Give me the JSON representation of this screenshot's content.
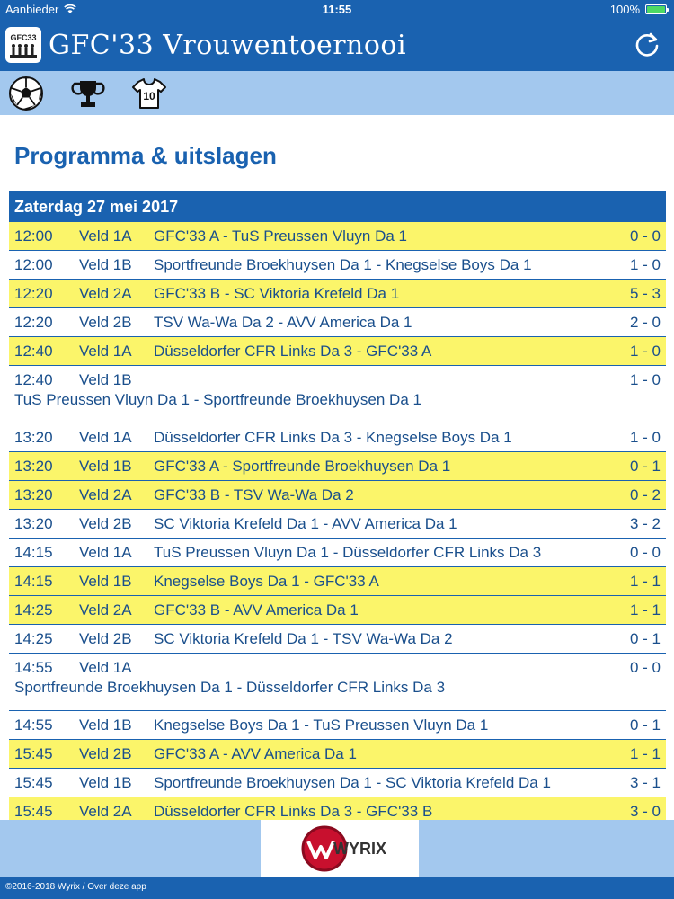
{
  "status_bar": {
    "carrier": "Aanbieder",
    "time": "11:55",
    "battery": "100%",
    "battery_level": 1.0
  },
  "header": {
    "title": "GFC'33 Vrouwentoernooi",
    "logo_text": "GFC33"
  },
  "nav": {
    "items": [
      {
        "icon": "soccer-ball-icon"
      },
      {
        "icon": "trophy-icon"
      },
      {
        "icon": "jersey-icon",
        "number": "10"
      }
    ]
  },
  "page_title": "Programma & uitslagen",
  "schedule": {
    "day": "Zaterdag 27 mei 2017",
    "matches": [
      {
        "time": "12:00",
        "field": "Veld 1A",
        "teams": "GFC'33 A - TuS Preussen Vluyn Da 1",
        "score": "0 - 0",
        "highlight": true
      },
      {
        "time": "12:00",
        "field": "Veld 1B",
        "teams": "Sportfreunde Broekhuysen Da 1 - Knegselse Boys Da 1",
        "score": "1 - 0",
        "highlight": false
      },
      {
        "time": "12:20",
        "field": "Veld 2A",
        "teams": "GFC'33 B - SC Viktoria Krefeld Da 1",
        "score": "5 - 3",
        "highlight": true
      },
      {
        "time": "12:20",
        "field": "Veld 2B",
        "teams": "TSV Wa-Wa Da 2 - AVV America Da 1",
        "score": "2 - 0",
        "highlight": false
      },
      {
        "time": "12:40",
        "field": "Veld 1A",
        "teams": "Düsseldorfer CFR Links Da 3 - GFC'33 A",
        "score": "1 - 0",
        "highlight": true
      },
      {
        "time": "12:40",
        "field": "Veld 1B",
        "teams": "TuS Preussen Vluyn Da 1 - Sportfreunde Broekhuysen Da 1",
        "score": "1 - 0",
        "highlight": false,
        "wrap": true
      },
      {
        "time": "13:20",
        "field": "Veld 1A",
        "teams": "Düsseldorfer CFR Links Da 3 - Knegselse Boys Da 1",
        "score": "1 - 0",
        "highlight": false
      },
      {
        "time": "13:20",
        "field": "Veld 1B",
        "teams": "GFC'33 A - Sportfreunde Broekhuysen Da 1",
        "score": "0 - 1",
        "highlight": true
      },
      {
        "time": "13:20",
        "field": "Veld 2A",
        "teams": "GFC'33 B - TSV Wa-Wa Da 2",
        "score": "0 - 2",
        "highlight": true
      },
      {
        "time": "13:20",
        "field": "Veld 2B",
        "teams": "SC Viktoria Krefeld Da 1 - AVV America Da 1",
        "score": "3 - 2",
        "highlight": false
      },
      {
        "time": "14:15",
        "field": "Veld 1A",
        "teams": "TuS Preussen Vluyn Da 1 - Düsseldorfer CFR Links Da 3",
        "score": "0 - 0",
        "highlight": false
      },
      {
        "time": "14:15",
        "field": "Veld 1B",
        "teams": "Knegselse Boys Da 1 - GFC'33 A",
        "score": "1 - 1",
        "highlight": true
      },
      {
        "time": "14:25",
        "field": "Veld 2A",
        "teams": "GFC'33 B - AVV America Da 1",
        "score": "1 - 1",
        "highlight": true
      },
      {
        "time": "14:25",
        "field": "Veld 2B",
        "teams": "SC Viktoria Krefeld Da 1 - TSV Wa-Wa Da 2",
        "score": "0 - 1",
        "highlight": false
      },
      {
        "time": "14:55",
        "field": "Veld 1A",
        "teams": "Sportfreunde Broekhuysen Da 1 - Düsseldorfer CFR Links Da 3",
        "score": "0 - 0",
        "highlight": false,
        "wrap": true
      },
      {
        "time": "14:55",
        "field": "Veld 1B",
        "teams": "Knegselse Boys Da 1 - TuS Preussen Vluyn Da 1",
        "score": "0 - 1",
        "highlight": false
      },
      {
        "time": "15:45",
        "field": "Veld 2B",
        "teams": "GFC'33 A - AVV America Da 1",
        "score": "1 - 1",
        "highlight": true
      },
      {
        "time": "15:45",
        "field": "Veld 1B",
        "teams": "Sportfreunde Broekhuysen Da 1 - SC Viktoria Krefeld Da 1",
        "score": "3 - 1",
        "highlight": false
      },
      {
        "time": "15:45",
        "field": "Veld 2A",
        "teams": "Düsseldorfer CFR Links Da 3 - GFC'33 B",
        "score": "3 - 0",
        "highlight": true
      }
    ]
  },
  "footer": {
    "sponsor": "WYRIX",
    "copyright": "©2016-2018 Wyrix / Over deze app"
  },
  "colors": {
    "primary": "#1a62b0",
    "nav_bg": "#a3c8ee",
    "highlight": "#fbf56a"
  }
}
